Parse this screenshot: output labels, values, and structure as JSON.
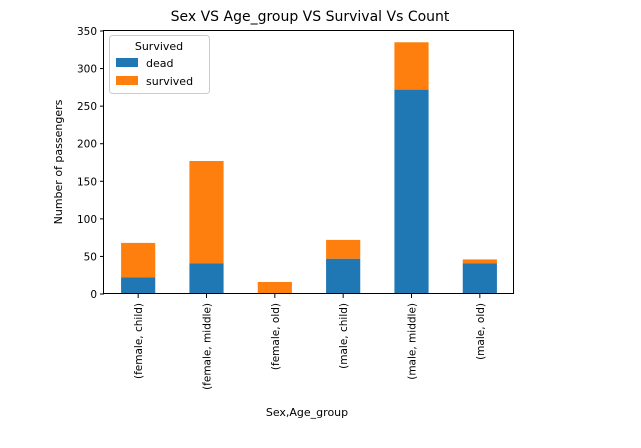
{
  "chart_data": {
    "type": "bar",
    "stacked": true,
    "title": "Sex VS Age_group VS Survival Vs Count",
    "xlabel": "Sex,Age_group",
    "ylabel": "Number of passengers",
    "categories": [
      "(female, child)",
      "(female, middle)",
      "(female, old)",
      "(male, child)",
      "(male, middle)",
      "(male, old)"
    ],
    "series": [
      {
        "name": "dead",
        "color": "#1f77b4",
        "values": [
          22,
          41,
          1,
          47,
          272,
          41
        ]
      },
      {
        "name": "survived",
        "color": "#ff7f0e",
        "values": [
          46,
          136,
          15,
          25,
          63,
          5
        ]
      }
    ],
    "ylim": [
      0,
      350
    ],
    "yticks": [
      0,
      50,
      100,
      150,
      200,
      250,
      300,
      350
    ],
    "grid": false,
    "legend": {
      "title": "Survived",
      "placement": "top-left"
    }
  }
}
